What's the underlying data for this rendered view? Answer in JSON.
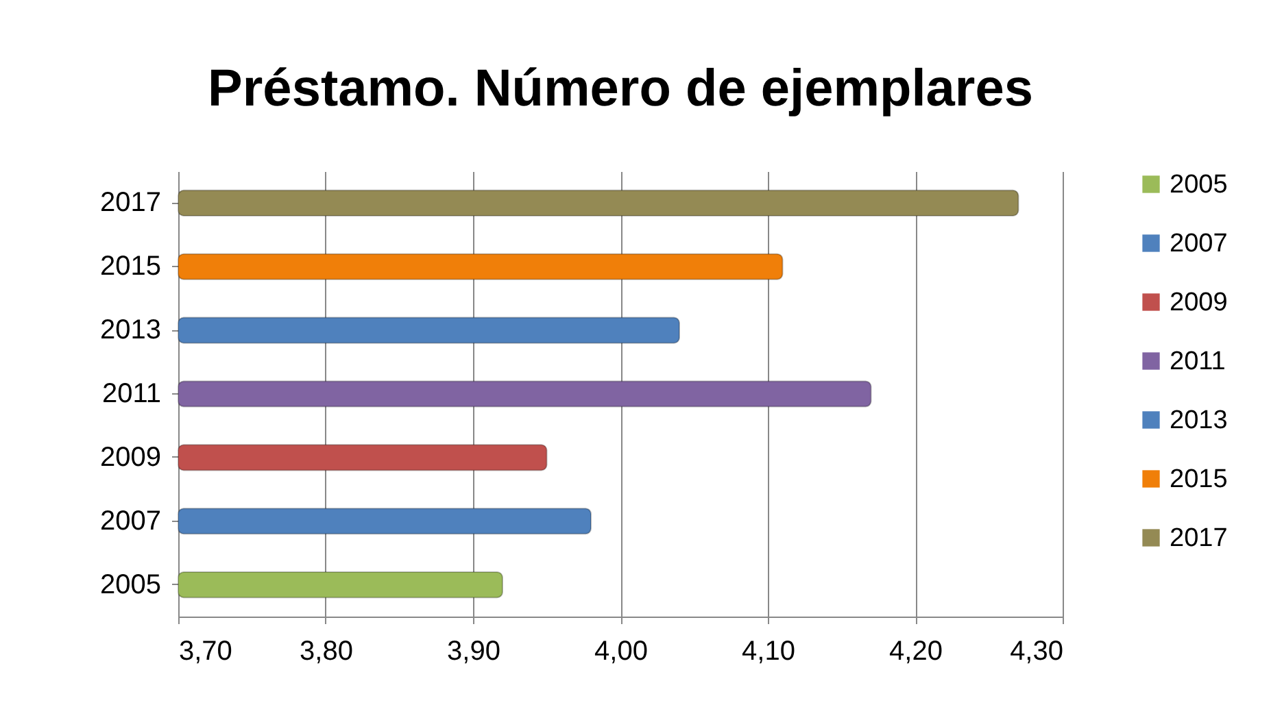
{
  "chart_data": {
    "type": "bar",
    "orientation": "horizontal",
    "title": "Préstamo. Número de ejemplares",
    "categories": [
      "2017",
      "2015",
      "2013",
      "2011",
      "2009",
      "2007",
      "2005"
    ],
    "series": [
      {
        "name": "2005",
        "color": "#9bbb59",
        "values": [
          null,
          null,
          null,
          null,
          null,
          null,
          3.92
        ]
      },
      {
        "name": "2007",
        "color": "#4f81bd",
        "values": [
          null,
          null,
          null,
          null,
          null,
          3.98,
          null
        ]
      },
      {
        "name": "2009",
        "color": "#c0504d",
        "values": [
          null,
          null,
          null,
          null,
          3.95,
          null,
          null
        ]
      },
      {
        "name": "2011",
        "color": "#8064a2",
        "values": [
          null,
          null,
          null,
          4.17,
          null,
          null,
          null
        ]
      },
      {
        "name": "2013",
        "color": "#4f81bd",
        "values": [
          null,
          null,
          4.04,
          null,
          null,
          null,
          null
        ]
      },
      {
        "name": "2015",
        "color": "#f07f09",
        "values": [
          null,
          4.11,
          null,
          null,
          null,
          null,
          null
        ]
      },
      {
        "name": "2017",
        "color": "#948a54",
        "values": [
          4.27,
          null,
          null,
          null,
          null,
          null,
          null
        ]
      }
    ],
    "xlim": [
      3.7,
      4.3
    ],
    "xticks": [
      {
        "value": 3.7,
        "label": "3,70"
      },
      {
        "value": 3.8,
        "label": "3,80"
      },
      {
        "value": 3.9,
        "label": "3,90"
      },
      {
        "value": 4.0,
        "label": "4,00"
      },
      {
        "value": 4.1,
        "label": "4,10"
      },
      {
        "value": 4.2,
        "label": "4,20"
      },
      {
        "value": 4.3,
        "label": "4,30"
      }
    ],
    "grid": "x",
    "legend": "right"
  }
}
